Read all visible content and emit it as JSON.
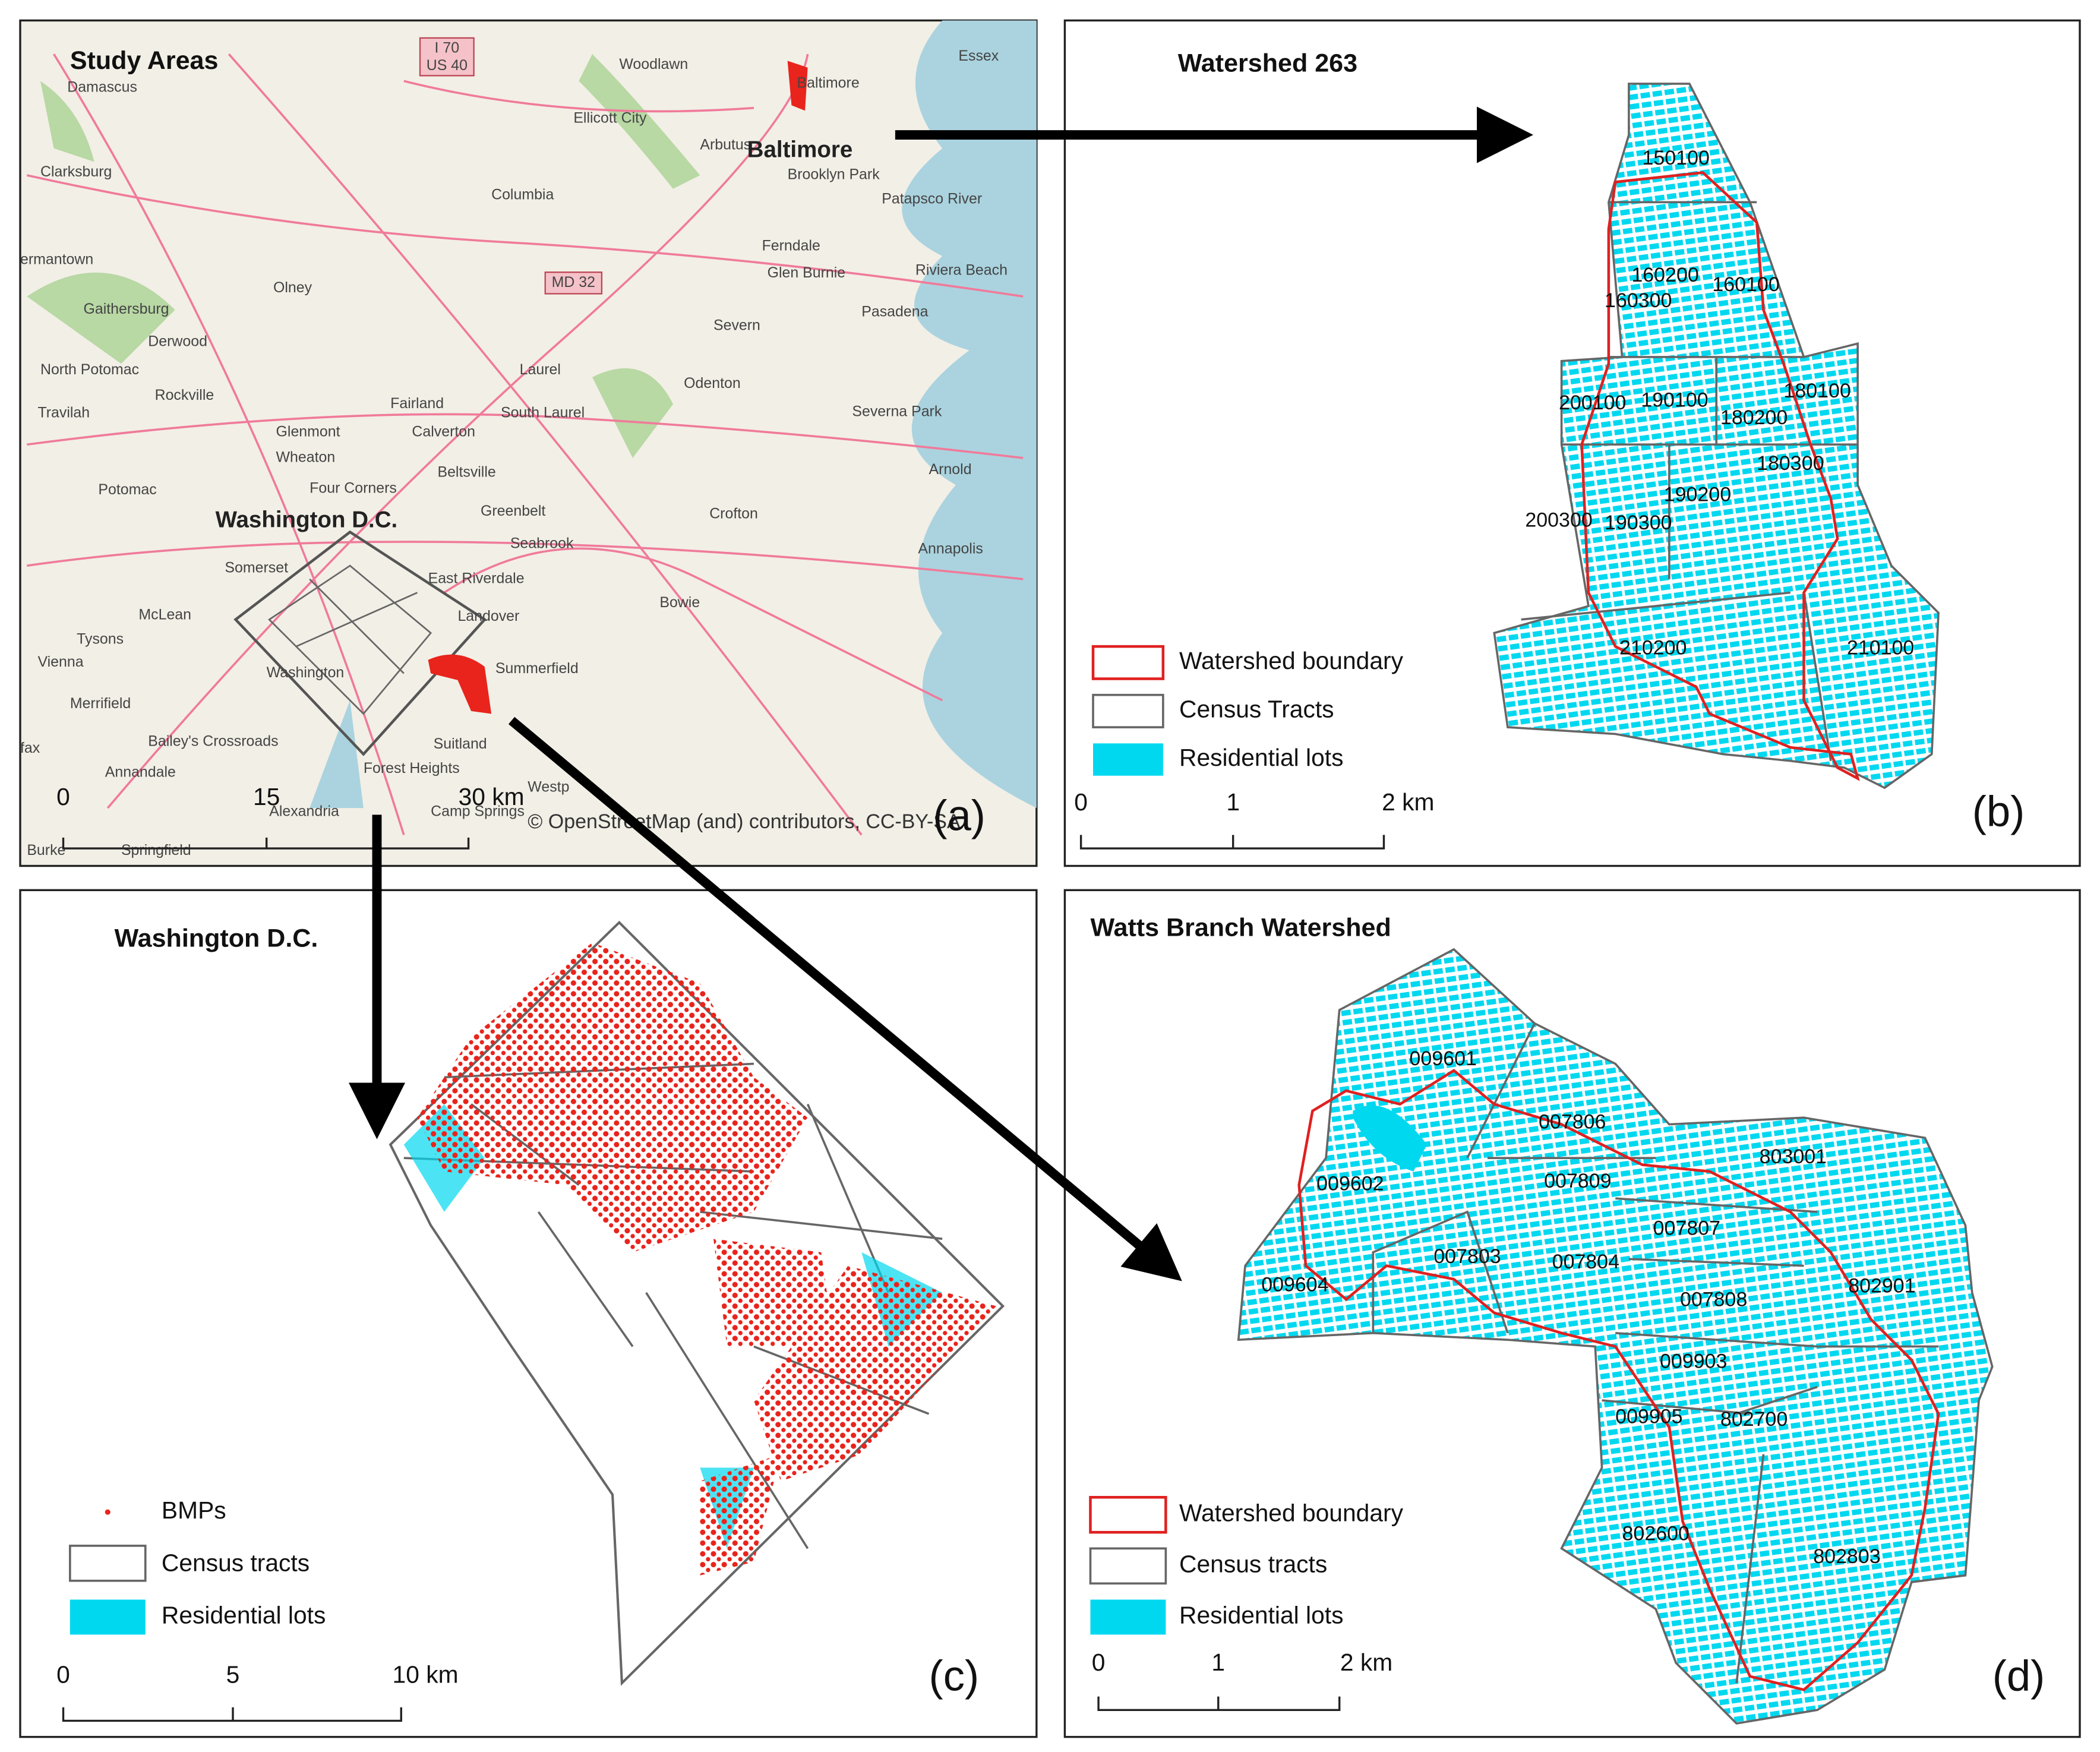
{
  "panel_a": {
    "title": "Study Areas",
    "shields": [
      "I 70",
      "US 40",
      "MD 32"
    ],
    "places": [
      "Woodlawn",
      "Essex",
      "Damascus",
      "Baltimore",
      "Ellicott City",
      "Arbutus",
      "Baltimore",
      "Brooklyn Park",
      "Clarksburg",
      "Columbia",
      "Patapsco River",
      "ermantown",
      "Ferndale",
      "Olney",
      "Glen Burnie",
      "Riviera Beach",
      "Gaithersburg",
      "Pasadena",
      "Derwood",
      "Severn",
      "North Potomac",
      "Laurel",
      "Odenton",
      "Rockville",
      "Fairland",
      "South Laurel",
      "Travilah",
      "Severna Park",
      "Glenmont",
      "Calverton",
      "Wheaton",
      "Potomac",
      "Four Corners",
      "Beltsville",
      "Arnold",
      "Crofton",
      "Greenbelt",
      "Washington D.C.",
      "Seabrook",
      "Annapolis",
      "Somerset",
      "East Riverdale",
      "McLean",
      "Bowie",
      "Landover",
      "Tysons",
      "Vienna",
      "Summerfield",
      "Washington",
      "Merrifield",
      "Suitland",
      "Bailey's Crossroads",
      "fax",
      "Forest Heights",
      "Annandale",
      "Alexandria",
      "Westp",
      "Camp Springs",
      "Burke",
      "Springfield"
    ],
    "scale_bar": [
      "0",
      "15",
      "30 km"
    ],
    "attribution": "© OpenStreetMap (and) contributors, CC-BY-SA",
    "letter": "(a)"
  },
  "panel_b": {
    "title": "Watershed 263",
    "tracts": [
      "150100",
      "160200",
      "160100",
      "160300",
      "200100",
      "190100",
      "180100",
      "180200",
      "180300",
      "190200",
      "200300",
      "190300",
      "210200",
      "210100"
    ],
    "legend": [
      "Watershed boundary",
      "Census Tracts",
      "Residential lots"
    ],
    "scale_bar": [
      "0",
      "1",
      "2 km"
    ],
    "letter": "(b)"
  },
  "panel_c": {
    "title": "Washington D.C.",
    "legend": [
      "BMPs",
      "Census tracts",
      "Residential lots"
    ],
    "scale_bar": [
      "0",
      "5",
      "10 km"
    ],
    "letter": "(c)"
  },
  "panel_d": {
    "title": "Watts Branch Watershed",
    "tracts": [
      "009601",
      "007806",
      "803001",
      "009602",
      "007809",
      "007807",
      "007803",
      "007804",
      "802901",
      "009604",
      "007808",
      "009903",
      "009905",
      "802700",
      "802600",
      "802803"
    ],
    "legend": [
      "Watershed boundary",
      "Census tracts",
      "Residential lots"
    ],
    "scale_bar": [
      "0",
      "1",
      "2 km"
    ],
    "letter": "(d)"
  }
}
